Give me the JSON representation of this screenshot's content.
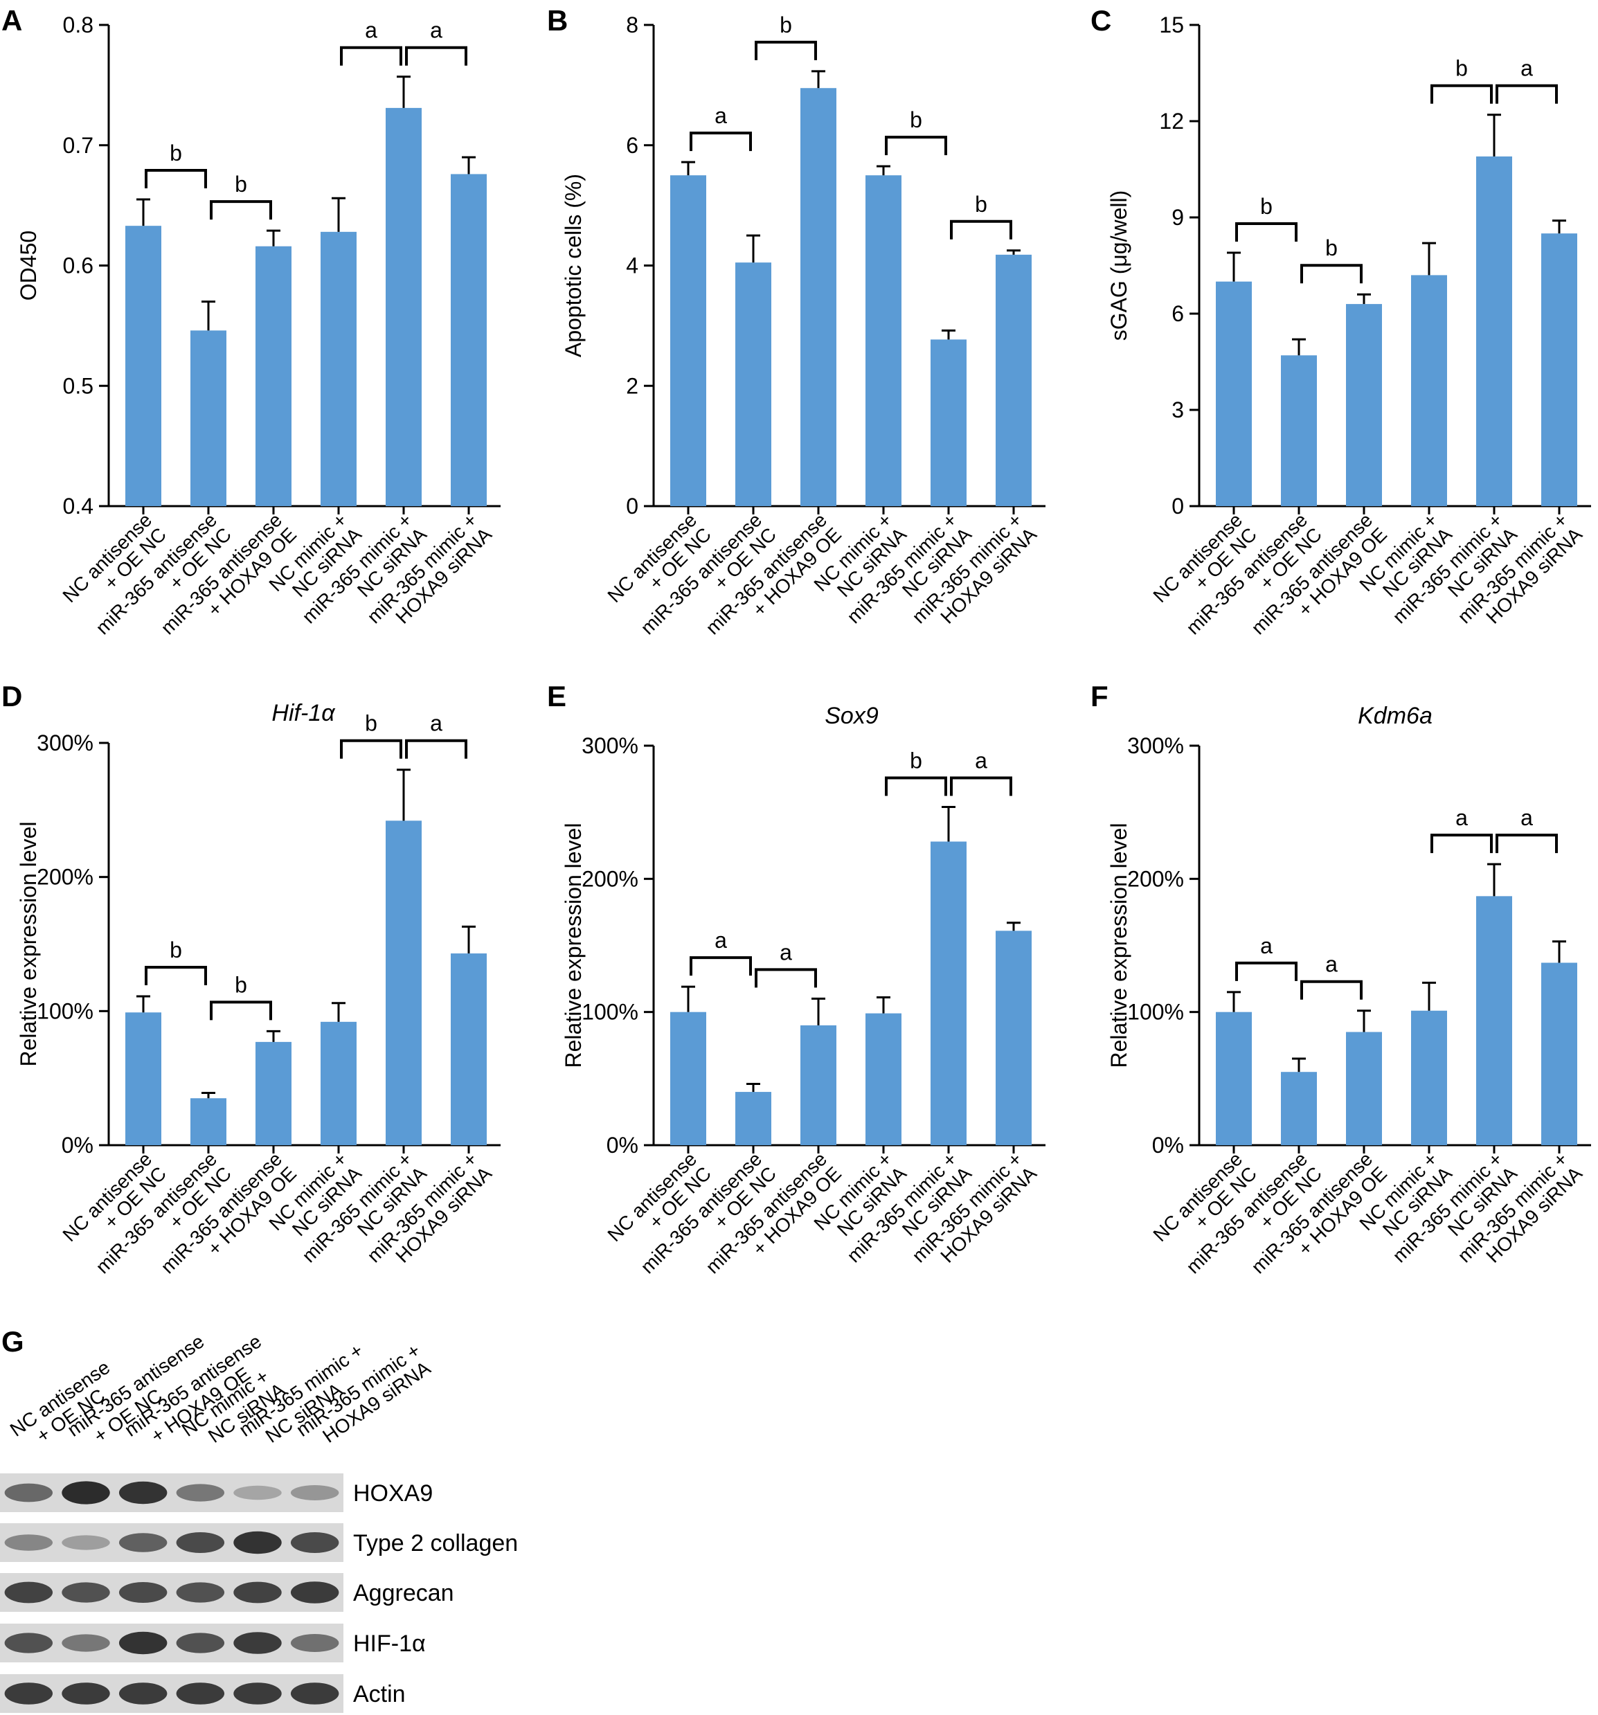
{
  "panels": [
    {
      "id": "A",
      "letter": "A"
    },
    {
      "id": "B",
      "letter": "B"
    },
    {
      "id": "C",
      "letter": "C"
    },
    {
      "id": "D",
      "letter": "D"
    },
    {
      "id": "E",
      "letter": "E"
    },
    {
      "id": "F",
      "letter": "F"
    },
    {
      "id": "G",
      "letter": "G"
    }
  ],
  "categories": [
    [
      "NC antisense",
      "+ OE NC"
    ],
    [
      "miR-365 antisense",
      "+ OE NC"
    ],
    [
      "miR-365 antisense",
      "+ HOXA9 OE"
    ],
    [
      "NC mimic +",
      "NC siRNA"
    ],
    [
      "miR-365 mimic +",
      "NC siRNA"
    ],
    [
      "miR-365 mimic +",
      "HOXA9 siRNA"
    ]
  ],
  "colors": {
    "bar": "#5b9bd5",
    "axis": "#000000",
    "blot_bg": "#d9d9d9",
    "band": "#1a1a1a"
  },
  "chart_data": [
    {
      "panel": "A",
      "type": "bar",
      "title": "",
      "xlabel": "",
      "ylabel": "OD450",
      "ylim": [
        0.4,
        0.8
      ],
      "ticks": [
        "0.4",
        "0.5",
        "0.6",
        "0.7",
        "0.8"
      ],
      "categories": [
        "NC antisense + OE NC",
        "miR-365 antisense + OE NC",
        "miR-365 antisense + HOXA9 OE",
        "NC mimic + NC siRNA",
        "miR-365 mimic + NC siRNA",
        "miR-365 mimic + HOXA9 siRNA"
      ],
      "values": [
        0.633,
        0.546,
        0.616,
        0.628,
        0.731,
        0.676
      ],
      "errors": [
        0.022,
        0.024,
        0.013,
        0.028,
        0.026,
        0.014
      ],
      "significance": [
        {
          "from": 0,
          "to": 1,
          "label": "b"
        },
        {
          "from": 1,
          "to": 2,
          "label": "b"
        },
        {
          "from": 3,
          "to": 4,
          "label": "a"
        },
        {
          "from": 4,
          "to": 5,
          "label": "a"
        }
      ]
    },
    {
      "panel": "B",
      "type": "bar",
      "title": "",
      "xlabel": "",
      "ylabel": "Apoptotic cells (%)",
      "ylim": [
        0,
        8
      ],
      "ticks": [
        "0",
        "2",
        "4",
        "6",
        "8"
      ],
      "categories": [
        "NC antisense + OE NC",
        "miR-365 antisense + OE NC",
        "miR-365 antisense + HOXA9 OE",
        "NC mimic + NC siRNA",
        "miR-365 mimic + NC siRNA",
        "miR-365 mimic + HOXA9 siRNA"
      ],
      "values": [
        5.5,
        4.05,
        6.95,
        5.5,
        2.77,
        4.18
      ],
      "errors": [
        0.22,
        0.45,
        0.28,
        0.15,
        0.15,
        0.07
      ],
      "significance": [
        {
          "from": 0,
          "to": 1,
          "label": "a"
        },
        {
          "from": 1,
          "to": 2,
          "label": "b"
        },
        {
          "from": 3,
          "to": 4,
          "label": "b"
        },
        {
          "from": 4,
          "to": 5,
          "label": "b"
        }
      ]
    },
    {
      "panel": "C",
      "type": "bar",
      "title": "",
      "xlabel": "",
      "ylabel": "sGAG (μg/well)",
      "ylim": [
        0,
        15
      ],
      "ticks": [
        "0",
        "3",
        "6",
        "9",
        "12",
        "15"
      ],
      "categories": [
        "NC antisense + OE NC",
        "miR-365 antisense + OE NC",
        "miR-365 antisense + HOXA9 OE",
        "NC mimic + NC siRNA",
        "miR-365 mimic + NC siRNA",
        "miR-365 mimic + HOXA9 siRNA"
      ],
      "values": [
        7.0,
        4.7,
        6.3,
        7.2,
        10.9,
        8.5
      ],
      "errors": [
        0.9,
        0.5,
        0.3,
        1.0,
        1.3,
        0.4
      ],
      "significance": [
        {
          "from": 0,
          "to": 1,
          "label": "b"
        },
        {
          "from": 1,
          "to": 2,
          "label": "b"
        },
        {
          "from": 3,
          "to": 4,
          "label": "b"
        },
        {
          "from": 4,
          "to": 5,
          "label": "a"
        }
      ]
    },
    {
      "panel": "D",
      "type": "bar",
      "title": "Hif-1α",
      "xlabel": "",
      "ylabel": "Relative expression level",
      "ylim": [
        0,
        300
      ],
      "ticks": [
        "0%",
        "100%",
        "200%",
        "300%"
      ],
      "categories": [
        "NC antisense + OE NC",
        "miR-365 antisense + OE NC",
        "miR-365 antisense + HOXA9 OE",
        "NC mimic + NC siRNA",
        "miR-365 mimic + NC siRNA",
        "miR-365 mimic + HOXA9 siRNA"
      ],
      "values": [
        99,
        35,
        77,
        92,
        242,
        143
      ],
      "errors": [
        12,
        4,
        8,
        14,
        38,
        20
      ],
      "significance": [
        {
          "from": 0,
          "to": 1,
          "label": "b"
        },
        {
          "from": 1,
          "to": 2,
          "label": "b"
        },
        {
          "from": 3,
          "to": 4,
          "label": "b"
        },
        {
          "from": 4,
          "to": 5,
          "label": "a"
        }
      ]
    },
    {
      "panel": "E",
      "type": "bar",
      "title": "Sox9",
      "xlabel": "",
      "ylabel": "Relative expression level",
      "ylim": [
        0,
        300
      ],
      "ticks": [
        "0%",
        "100%",
        "200%",
        "300%"
      ],
      "categories": [
        "NC antisense + OE NC",
        "miR-365 antisense + OE NC",
        "miR-365 antisense + HOXA9 OE",
        "NC mimic + NC siRNA",
        "miR-365 mimic + NC siRNA",
        "miR-365 mimic + HOXA9 siRNA"
      ],
      "values": [
        100,
        40,
        90,
        99,
        228,
        161
      ],
      "errors": [
        19,
        6,
        20,
        12,
        26,
        6
      ],
      "significance": [
        {
          "from": 0,
          "to": 1,
          "label": "a"
        },
        {
          "from": 1,
          "to": 2,
          "label": "a"
        },
        {
          "from": 3,
          "to": 4,
          "label": "b"
        },
        {
          "from": 4,
          "to": 5,
          "label": "a"
        }
      ]
    },
    {
      "panel": "F",
      "type": "bar",
      "title": "Kdm6a",
      "xlabel": "",
      "ylabel": "Relative expression level",
      "ylim": [
        0,
        300
      ],
      "ticks": [
        "0%",
        "100%",
        "200%",
        "300%"
      ],
      "categories": [
        "NC antisense + OE NC",
        "miR-365 antisense + OE NC",
        "miR-365 antisense + HOXA9 OE",
        "NC mimic + NC siRNA",
        "miR-365 mimic + NC siRNA",
        "miR-365 mimic + HOXA9 siRNA"
      ],
      "values": [
        100,
        55,
        85,
        101,
        187,
        137
      ],
      "errors": [
        15,
        10,
        16,
        21,
        24,
        16
      ],
      "significance": [
        {
          "from": 0,
          "to": 1,
          "label": "a"
        },
        {
          "from": 1,
          "to": 2,
          "label": "a"
        },
        {
          "from": 3,
          "to": 4,
          "label": "a"
        },
        {
          "from": 4,
          "to": 5,
          "label": "a"
        }
      ]
    }
  ],
  "blot": {
    "panel": "G",
    "rows": [
      {
        "label": "HOXA9",
        "intensities": [
          0.55,
          0.95,
          0.9,
          0.45,
          0.15,
          0.25
        ]
      },
      {
        "label": "Type 2 collagen",
        "intensities": [
          0.35,
          0.2,
          0.6,
          0.75,
          0.9,
          0.75
        ]
      },
      {
        "label": "Aggrecan",
        "intensities": [
          0.8,
          0.7,
          0.75,
          0.7,
          0.8,
          0.85
        ]
      },
      {
        "label": "HIF-1α",
        "intensities": [
          0.7,
          0.45,
          0.9,
          0.7,
          0.85,
          0.5
        ]
      },
      {
        "label": "Actin",
        "intensities": [
          0.85,
          0.85,
          0.85,
          0.85,
          0.85,
          0.85
        ]
      }
    ]
  }
}
